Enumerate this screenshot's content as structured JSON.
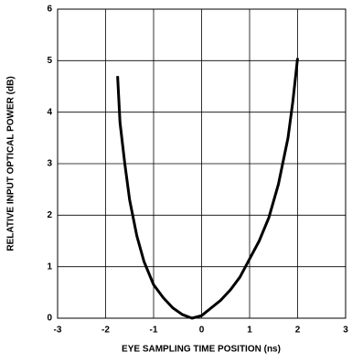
{
  "chart_data": {
    "type": "line",
    "xlabel": "EYE SAMPLING TIME POSITION (ns)",
    "ylabel": "RELATIVE INPUT OPTICAL POWER (dB)",
    "xlim": [
      -3,
      3
    ],
    "xticks": [
      -3,
      -2,
      -1,
      0,
      1,
      2,
      3
    ],
    "ylim": [
      0,
      6
    ],
    "yticks": [
      0,
      1,
      2,
      3,
      4,
      5,
      6
    ],
    "grid": true,
    "x": [
      -1.75,
      -1.7,
      -1.6,
      -1.5,
      -1.35,
      -1.2,
      -1.0,
      -0.8,
      -0.6,
      -0.4,
      -0.2,
      0,
      0.2,
      0.4,
      0.6,
      0.8,
      1.0,
      1.2,
      1.4,
      1.6,
      1.8,
      1.9,
      2.0
    ],
    "series": [
      {
        "color": "#000000",
        "values": [
          4.7,
          3.8,
          3.0,
          2.3,
          1.6,
          1.1,
          0.65,
          0.4,
          0.2,
          0.07,
          0.0,
          0.05,
          0.2,
          0.35,
          0.55,
          0.8,
          1.15,
          1.5,
          1.95,
          2.6,
          3.5,
          4.2,
          5.05
        ]
      }
    ]
  }
}
